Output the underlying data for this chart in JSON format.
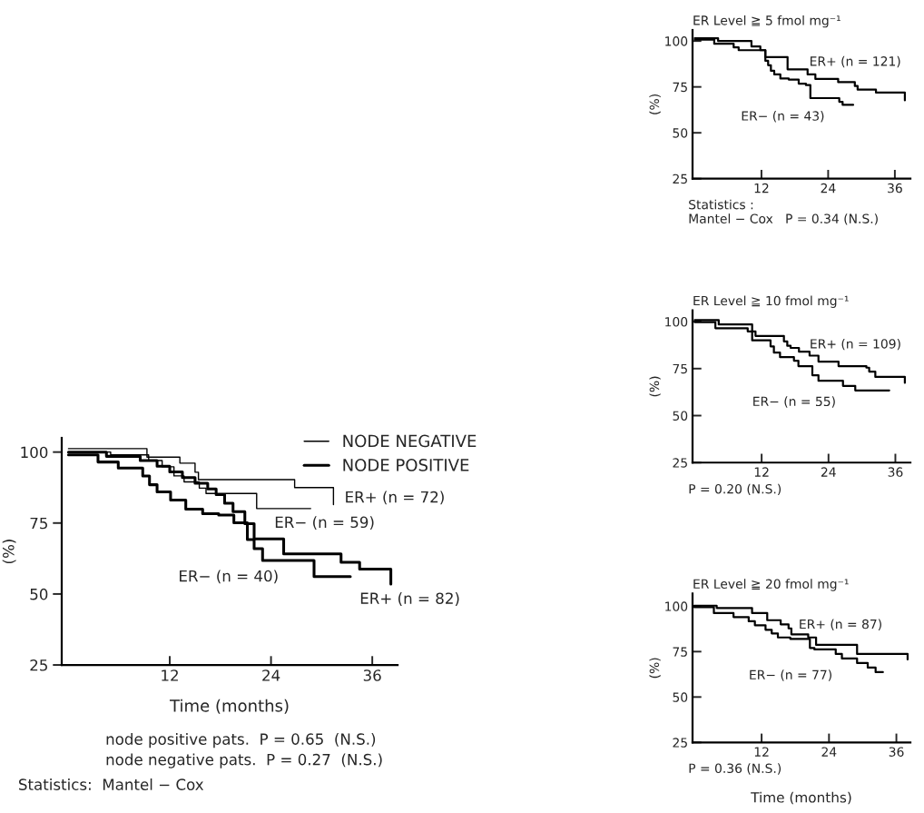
{
  "chart_data": [
    {
      "type": "step",
      "xlabel": "Time (months)",
      "ylabel": "(%)",
      "xlim": [
        -0.8,
        39
      ],
      "ylim": [
        25,
        105
      ],
      "xticks": [
        12,
        24,
        36
      ],
      "yticks": [
        25,
        50,
        75,
        100
      ],
      "legend": "top right",
      "series": [
        {
          "name": "NODE NEGATIVE",
          "color": "#000000",
          "x": [
            0,
            9.3,
            13.2,
            15,
            15.4,
            26.8,
            31.4,
            31.4
          ],
          "values": [
            101.2,
            98.2,
            96.1,
            92.9,
            90.3,
            87.5,
            81.5,
            81.5
          ]
        },
        {
          "color": "#000000",
          "x": [
            0,
            5,
            9.5,
            11.1,
            12.5,
            13.7,
            15.5,
            16.3,
            22.3,
            28.7
          ],
          "values": [
            100,
            99,
            97,
            94.8,
            91.6,
            89.5,
            87.3,
            85.4,
            80.1,
            80.1
          ]
        },
        {
          "name": "NODE POSITIVE",
          "color": "#000000",
          "x": [
            0,
            4.5,
            8.5,
            10.5,
            12,
            13.5,
            15,
            16.5,
            17.5,
            18.5,
            19.5,
            20.9,
            22,
            25.5,
            32.3,
            34.5,
            38.2,
            38.2
          ],
          "values": [
            100,
            98.5,
            97,
            95,
            93,
            91,
            89,
            87,
            85,
            82,
            79,
            74.8,
            69.4,
            64.1,
            61.2,
            58.8,
            53.5,
            53.5
          ]
        },
        {
          "color": "#000000",
          "x": [
            0,
            3.5,
            5.9,
            8.8,
            9.6,
            10.5,
            12.1,
            13.9,
            15.9,
            17.8,
            19.6,
            21.2,
            22,
            23,
            29.1,
            33.4
          ],
          "values": [
            99,
            96.5,
            94.4,
            91.6,
            88.5,
            86,
            83.1,
            79.9,
            78.3,
            77.8,
            75.1,
            69.2,
            66,
            61.8,
            56.1,
            56.1
          ]
        }
      ],
      "annotations": [
        "ER+ (n = 72)",
        "ER− (n = 59)",
        "ER− (n = 40)",
        "ER+ (n = 82)",
        "node positive pats.  P = 0.65  (N.S.)",
        "node negative pats.  P = 0.27  (N.S.)",
        "Statistics:  Mantel − Cox"
      ]
    },
    {
      "type": "step",
      "title": "ER Level ≧ 5 fmol mg⁻¹",
      "ylabel": "(%)",
      "xlim": [
        -0.4,
        38.8
      ],
      "ylim": [
        25,
        106
      ],
      "xticks": [
        12,
        24,
        36
      ],
      "yticks": [
        25,
        50,
        75,
        100
      ],
      "series": [
        {
          "color": "#000000",
          "x": [
            0,
            4.2,
            10.2,
            11.8,
            12.7,
            16.7,
            20.3,
            21.7,
            25.8,
            28.8,
            29.3,
            32.6,
            37.8,
            37.8
          ],
          "values": [
            101.5,
            100,
            97,
            95,
            91.2,
            84.6,
            81.8,
            79.3,
            77.6,
            75.5,
            73.5,
            71.9,
            67.7,
            67.7
          ]
        },
        {
          "color": "#000000",
          "x": [
            0,
            3.5,
            7,
            7.9,
            12.7,
            13.2,
            13.7,
            14.3,
            15.4,
            16.9,
            18.7,
            20,
            20.8,
            26,
            26.6,
            28.5
          ],
          "values": [
            100.8,
            98.5,
            96.5,
            95,
            89.2,
            86.8,
            83.8,
            81.8,
            79.6,
            79,
            76.8,
            76,
            68.9,
            66.9,
            65.2,
            65.2
          ]
        }
      ],
      "annotations": [
        "ER+ (n = 121)",
        "ER− (n = 43)",
        "Statistics :\nMantel − Cox   P = 0.34 (N.S.)"
      ]
    },
    {
      "type": "step",
      "title": "ER Level ≧ 10 fmol mg⁻¹",
      "ylabel": "(%)",
      "xlim": [
        -0.4,
        38.7
      ],
      "ylim": [
        25,
        106
      ],
      "xticks": [
        12,
        24,
        36
      ],
      "yticks": [
        25,
        50,
        75,
        100
      ],
      "series": [
        {
          "color": "#000000",
          "x": [
            0,
            4.3,
            10.3,
            10.9,
            16,
            16.6,
            17.2,
            18.7,
            20.6,
            22.2,
            25.8,
            30.8,
            31.3,
            32.4,
            37.7,
            37.7
          ],
          "values": [
            100.8,
            98.5,
            94.8,
            92.4,
            89.5,
            87.1,
            86,
            84,
            81.9,
            78.7,
            76.3,
            75.5,
            73.4,
            70.6,
            67.4,
            67.4
          ]
        },
        {
          "color": "#000000",
          "x": [
            0,
            3.7,
            9.5,
            10.3,
            13.6,
            14.2,
            15.3,
            17.8,
            18.6,
            21.1,
            22.2,
            26.6,
            28.8,
            34.9
          ],
          "values": [
            99.7,
            96.5,
            94.8,
            90,
            86.8,
            83.5,
            81.1,
            79.2,
            76.3,
            71.5,
            68.5,
            65.8,
            63.4,
            63.4
          ]
        }
      ],
      "annotations": [
        "ER+ (n = 109)",
        "ER− (n = 55)",
        "P = 0.20 (N.S.)"
      ]
    },
    {
      "type": "step",
      "title": "ER Level ≧ 20 fmol mg⁻¹",
      "xlabel": "Time (months)",
      "ylabel": "(%)",
      "xlim": [
        -0.3,
        38.5
      ],
      "ylim": [
        25,
        107
      ],
      "xticks": [
        12,
        24,
        36
      ],
      "yticks": [
        25,
        50,
        75,
        100
      ],
      "series": [
        {
          "color": "#000000",
          "x": [
            0,
            4,
            10.3,
            13,
            15.4,
            16.8,
            17.3,
            20.3,
            21.7,
            29,
            38,
            38
          ],
          "values": [
            100.3,
            99,
            96.2,
            92.3,
            90,
            87.8,
            84.5,
            82.8,
            78.7,
            73.7,
            70.7,
            70.7
          ]
        },
        {
          "color": "#000000",
          "x": [
            0,
            3.5,
            7,
            9.7,
            10.8,
            12.7,
            13.8,
            14.9,
            17.1,
            20.6,
            21.4,
            25.2,
            26.3,
            29,
            30.9,
            32.3,
            33.6
          ],
          "values": [
            99.5,
            96.2,
            94,
            91.7,
            89.5,
            87,
            85,
            82.8,
            82,
            77,
            76.2,
            73.7,
            71.2,
            68.7,
            66.2,
            63.7,
            63.7
          ]
        }
      ],
      "annotations": [
        "ER+ (n = 87)",
        "ER− (n = 77)",
        "P = 0.36 (N.S.)"
      ]
    }
  ]
}
